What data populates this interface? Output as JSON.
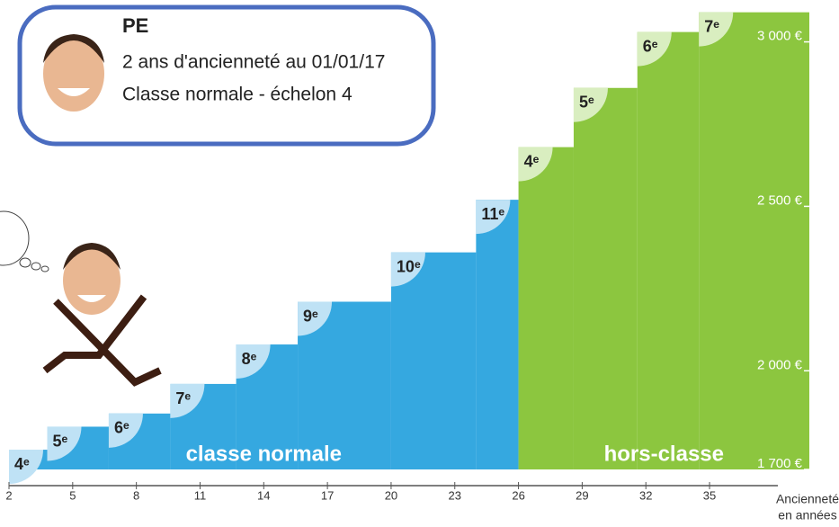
{
  "card": {
    "title": "PE",
    "lines": [
      "2 ans d'ancienneté au 01/01/17",
      "Classe normale - échelon 4"
    ]
  },
  "chart_data": {
    "type": "step",
    "xlim": [
      2,
      39.7
    ],
    "xticks": [
      2,
      5,
      8,
      11,
      14,
      17,
      20,
      23,
      26,
      29,
      32,
      35
    ],
    "x_label": [
      "Ancienneté",
      "en années"
    ],
    "ylim": [
      1700,
      3100
    ],
    "yticks": [
      {
        "value": 1700,
        "label": "1 700 €"
      },
      {
        "value": 2000,
        "label": "2 000 €"
      },
      {
        "value": 2500,
        "label": "2 500 €"
      },
      {
        "value": 3000,
        "label": "3 000 €"
      }
    ],
    "series": [
      {
        "name": "classe normale",
        "color": "#35a8e0",
        "badge": "#bfe2f5",
        "bins": [
          2,
          3.8,
          6.7,
          9.6,
          12.7,
          15.6,
          20,
          24,
          26
        ],
        "values": [
          1760,
          1830,
          1870,
          1960,
          2080,
          2210,
          2360,
          2520
        ],
        "labels": [
          "4ᵉ",
          "5ᵉ",
          "6ᵉ",
          "7ᵉ",
          "8ᵉ",
          "9ᵉ",
          "10ᵉ",
          "11ᵉ"
        ]
      },
      {
        "name": "hors-classe",
        "color": "#8cc63f",
        "badge": "#d9eec0",
        "bins": [
          26,
          28.6,
          31.6,
          34.5,
          39.7
        ],
        "values": [
          2680,
          2860,
          3030,
          3090
        ],
        "labels": [
          "4ᵉ",
          "5ᵉ",
          "6ᵉ",
          "7ᵉ"
        ]
      }
    ]
  }
}
